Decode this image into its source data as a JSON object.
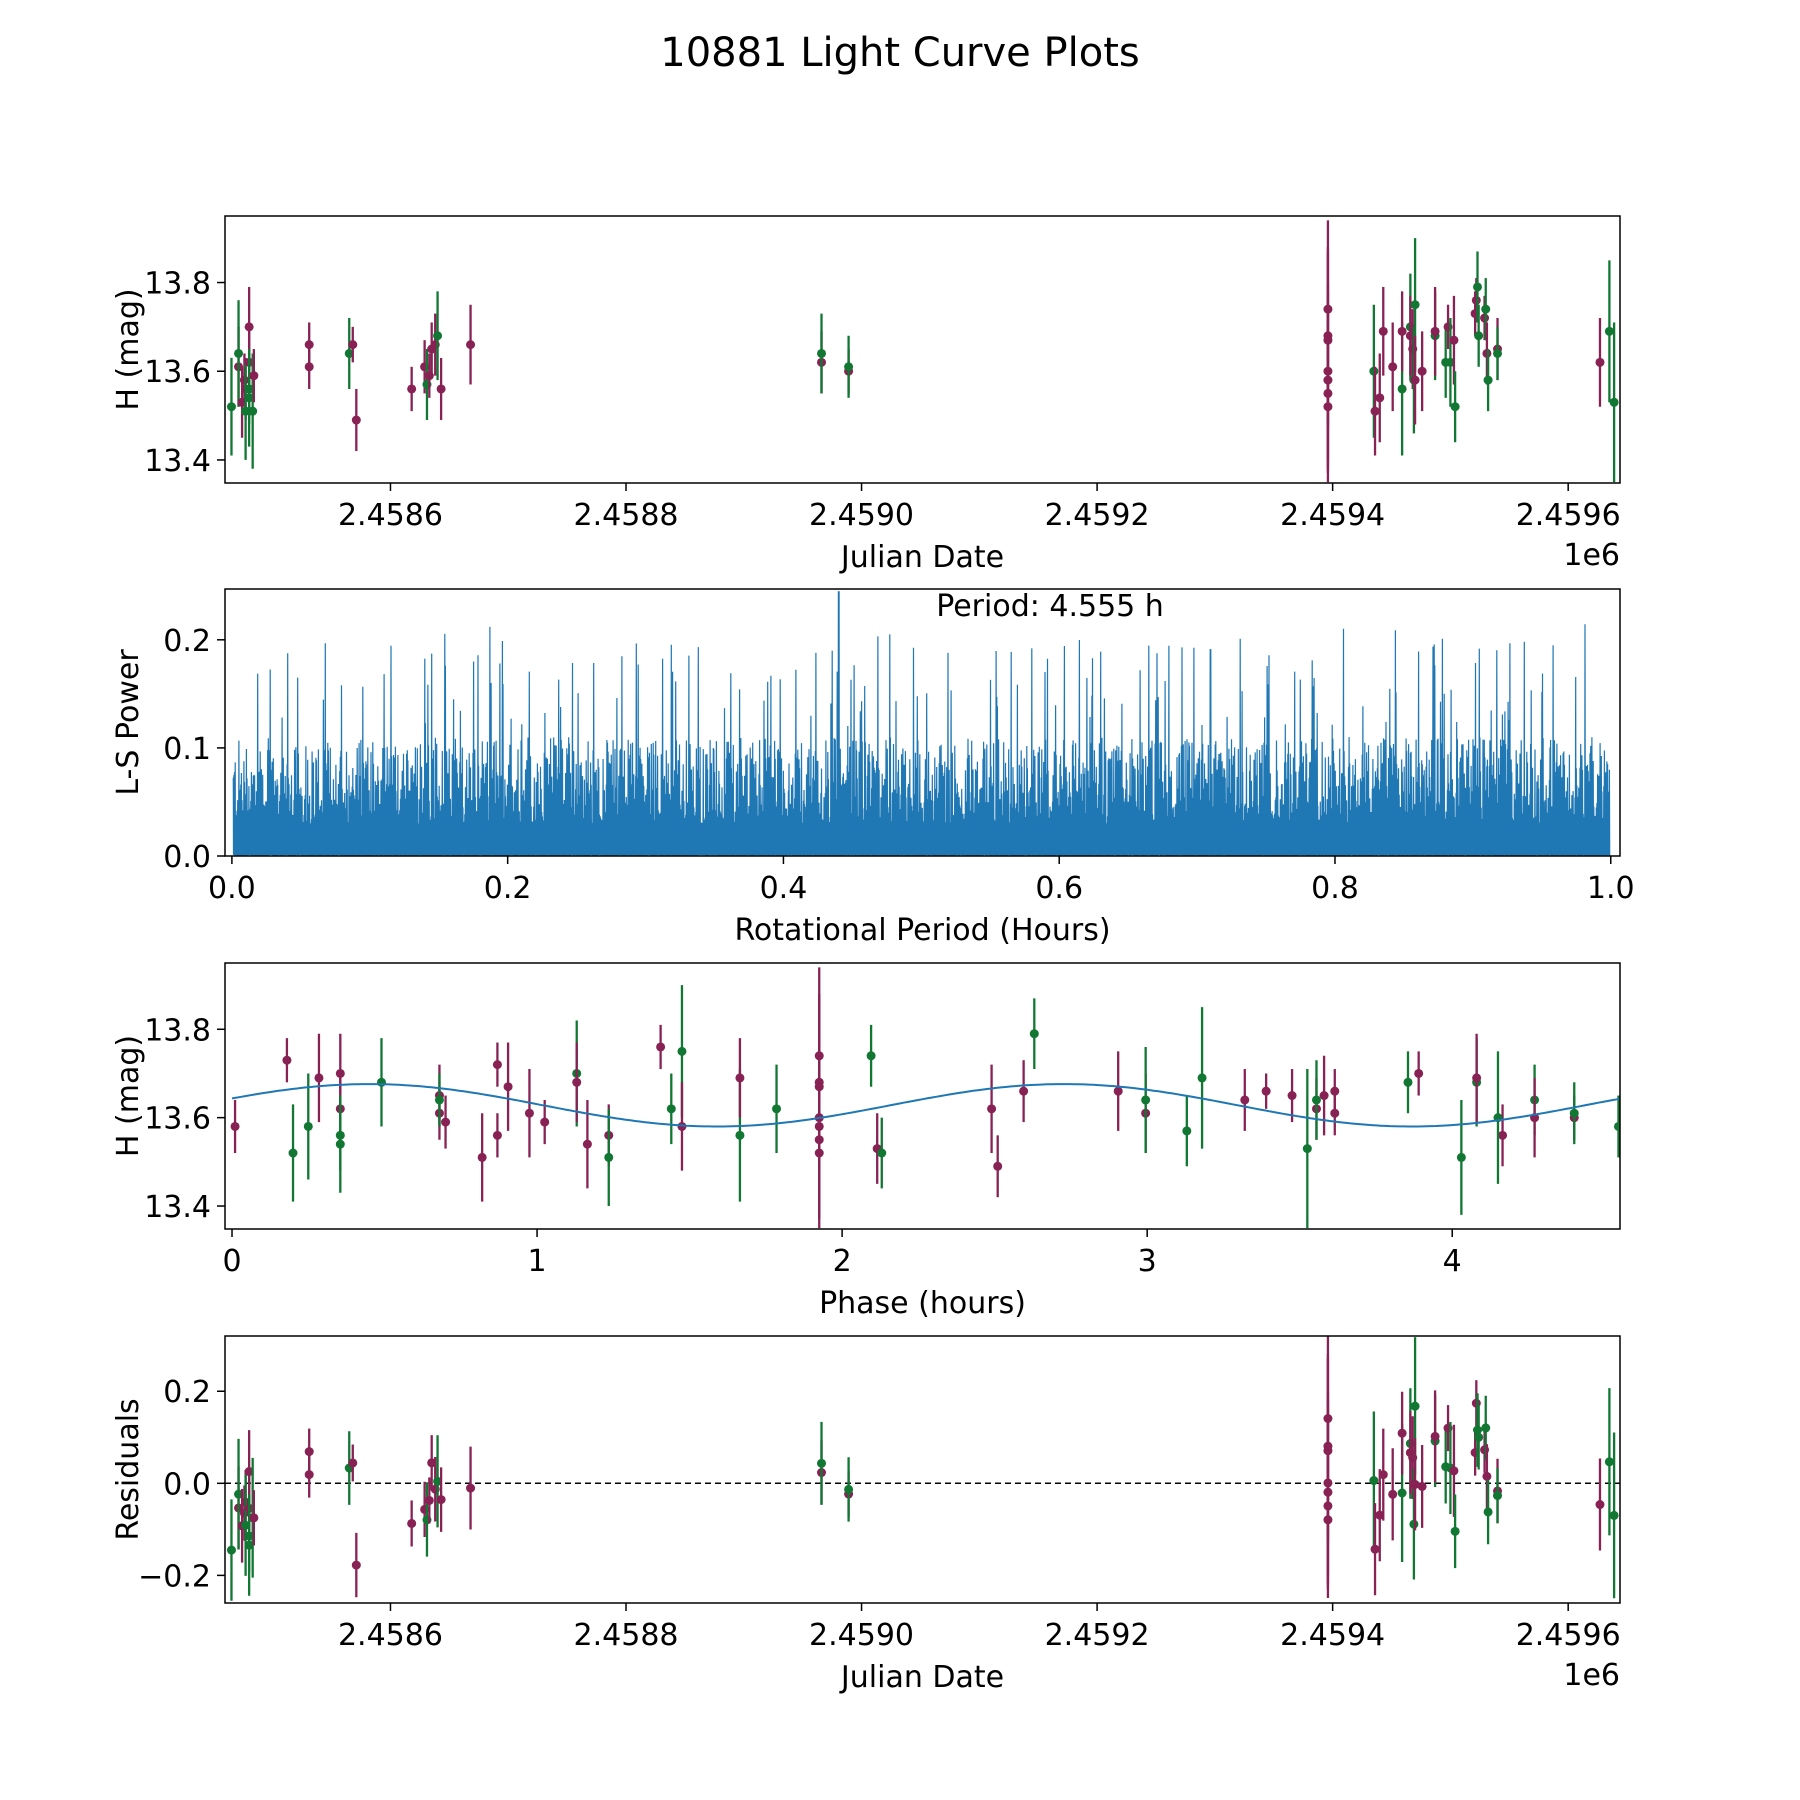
{
  "title": "10881 Light Curve Plots",
  "chart_data": [
    {
      "type": "scatter",
      "name": "light-curve",
      "xlabel": "Julian Date",
      "ylabel": "H (mag)",
      "xlim": [
        2458459.5,
        2459644
      ],
      "ylim": [
        13.348,
        13.95
      ],
      "xticks": [
        2458600,
        2458800,
        2459000,
        2459200,
        2459400,
        2459600
      ],
      "xtick_labels": [
        "2.4586",
        "2.4588",
        "2.4590",
        "2.4592",
        "2.4594",
        "2.4596"
      ],
      "x_offset_label": "1e6",
      "yticks": [
        13.4,
        13.6,
        13.8
      ],
      "ytick_labels": [
        "13.4",
        "13.6",
        "13.8"
      ],
      "colors": {
        "g": "#117733",
        "m": "#882255"
      },
      "points": [
        [
          2458465,
          13.52,
          0.11,
          "g"
        ],
        [
          2458471,
          13.61,
          0.09,
          "m"
        ],
        [
          2458471,
          13.64,
          0.12,
          "g"
        ],
        [
          2458474,
          13.53,
          0.08,
          "m"
        ],
        [
          2458476,
          13.58,
          0.06,
          "m"
        ],
        [
          2458477,
          13.56,
          0.07,
          "m"
        ],
        [
          2458477,
          13.51,
          0.11,
          "g"
        ],
        [
          2458480,
          13.7,
          0.09,
          "m"
        ],
        [
          2458480,
          13.62,
          0.08,
          "m"
        ],
        [
          2458480,
          13.56,
          0.08,
          "g"
        ],
        [
          2458480,
          13.54,
          0.11,
          "g"
        ],
        [
          2458483,
          13.51,
          0.13,
          "g"
        ],
        [
          2458484,
          13.59,
          0.06,
          "m"
        ],
        [
          2458531,
          13.66,
          0.05,
          "m"
        ],
        [
          2458531,
          13.61,
          0.05,
          "m"
        ],
        [
          2458565,
          13.64,
          0.08,
          "g"
        ],
        [
          2458568,
          13.66,
          0.04,
          "m"
        ],
        [
          2458571,
          13.49,
          0.07,
          "m"
        ],
        [
          2458618,
          13.56,
          0.05,
          "m"
        ],
        [
          2458629,
          13.61,
          0.06,
          "m"
        ],
        [
          2458631,
          13.57,
          0.08,
          "g"
        ],
        [
          2458633,
          13.59,
          0.05,
          "m"
        ],
        [
          2458635,
          13.65,
          0.06,
          "m"
        ],
        [
          2458638,
          13.66,
          0.07,
          "m"
        ],
        [
          2458640,
          13.68,
          0.1,
          "g"
        ],
        [
          2458643,
          13.56,
          0.07,
          "m"
        ],
        [
          2458668,
          13.66,
          0.09,
          "m"
        ],
        [
          2458966,
          13.62,
          0.07,
          "m"
        ],
        [
          2458966,
          13.64,
          0.09,
          "g"
        ],
        [
          2458989,
          13.6,
          0.05,
          "m"
        ],
        [
          2458989,
          13.61,
          0.07,
          "g"
        ],
        [
          2459396,
          13.74,
          0.2,
          "m"
        ],
        [
          2459396,
          13.68,
          0.2,
          "m"
        ],
        [
          2459396,
          13.67,
          0.2,
          "m"
        ],
        [
          2459396,
          13.6,
          0.2,
          "m"
        ],
        [
          2459396,
          13.58,
          0.2,
          "m"
        ],
        [
          2459396,
          13.55,
          0.2,
          "m"
        ],
        [
          2459396,
          13.52,
          0.15,
          "m"
        ],
        [
          2459435,
          13.6,
          0.15,
          "g"
        ],
        [
          2459436,
          13.51,
          0.1,
          "m"
        ],
        [
          2459440,
          13.54,
          0.1,
          "m"
        ],
        [
          2459443,
          13.69,
          0.1,
          "m"
        ],
        [
          2459451,
          13.61,
          0.1,
          "m"
        ],
        [
          2459459,
          13.56,
          0.15,
          "g"
        ],
        [
          2459459,
          13.69,
          0.09,
          "m"
        ],
        [
          2459466,
          13.7,
          0.12,
          "g"
        ],
        [
          2459466,
          13.68,
          0.09,
          "m"
        ],
        [
          2459468,
          13.65,
          0.09,
          "m"
        ],
        [
          2459469,
          13.58,
          0.12,
          "g"
        ],
        [
          2459470,
          13.75,
          0.15,
          "g"
        ],
        [
          2459470,
          13.58,
          0.1,
          "m"
        ],
        [
          2459476,
          13.6,
          0.09,
          "m"
        ],
        [
          2459487,
          13.68,
          0.1,
          "g"
        ],
        [
          2459487,
          13.69,
          0.1,
          "m"
        ],
        [
          2459496,
          13.62,
          0.08,
          "g"
        ],
        [
          2459498,
          13.7,
          0.05,
          "m"
        ],
        [
          2459500,
          13.62,
          0.1,
          "g"
        ],
        [
          2459503,
          13.67,
          0.1,
          "m"
        ],
        [
          2459504,
          13.52,
          0.08,
          "g"
        ],
        [
          2459521,
          13.73,
          0.05,
          "m"
        ],
        [
          2459522,
          13.76,
          0.05,
          "m"
        ],
        [
          2459523,
          13.79,
          0.08,
          "g"
        ],
        [
          2459524,
          13.68,
          0.07,
          "g"
        ],
        [
          2459529,
          13.72,
          0.05,
          "m"
        ],
        [
          2459530,
          13.74,
          0.07,
          "g"
        ],
        [
          2459531,
          13.64,
          0.07,
          "m"
        ],
        [
          2459532,
          13.58,
          0.07,
          "g"
        ],
        [
          2459540,
          13.65,
          0.07,
          "m"
        ],
        [
          2459540,
          13.64,
          0.06,
          "g"
        ],
        [
          2459627,
          13.62,
          0.1,
          "m"
        ],
        [
          2459635,
          13.69,
          0.16,
          "g"
        ],
        [
          2459639,
          13.53,
          0.18,
          "g"
        ]
      ]
    },
    {
      "type": "line",
      "name": "periodogram",
      "xlabel": "Rotational Period (Hours)",
      "ylabel": "L-S Power",
      "xlim": [
        -0.005,
        1.0067
      ],
      "ylim": [
        0,
        0.247
      ],
      "xticks": [
        0,
        0.2,
        0.4,
        0.6,
        0.8,
        1.0
      ],
      "xtick_labels": [
        "0.0",
        "0.2",
        "0.4",
        "0.6",
        "0.8",
        "1.0"
      ],
      "yticks": [
        0,
        0.1,
        0.2
      ],
      "ytick_labels": [
        "0.0",
        "0.1",
        "0.2"
      ],
      "color": "#1f77b4",
      "peak": {
        "x": 0.44,
        "power": 0.245
      },
      "annotation": "Period: 4.555 h"
    },
    {
      "type": "scatter",
      "name": "phased-curve",
      "xlabel": "Phase (hours)",
      "ylabel": "H (mag)",
      "xlim": [
        -0.023,
        4.55
      ],
      "ylim": [
        13.348,
        13.95
      ],
      "xticks": [
        0,
        1,
        2,
        3,
        4
      ],
      "xtick_labels": [
        "0",
        "1",
        "2",
        "3",
        "4"
      ],
      "yticks": [
        13.4,
        13.6,
        13.8
      ],
      "ytick_labels": [
        "13.4",
        "13.6",
        "13.8"
      ],
      "model": {
        "period_h": 4.555,
        "mean": 13.628,
        "amplitude": 0.048,
        "peak_phase_h": 0.45,
        "color": "#1f77b4"
      }
    },
    {
      "type": "scatter",
      "name": "residuals",
      "xlabel": "Julian Date",
      "ylabel": "Residuals",
      "xlim": [
        2458459.5,
        2459644
      ],
      "ylim": [
        -0.26,
        0.32
      ],
      "xticks": [
        2458600,
        2458800,
        2459000,
        2459200,
        2459400,
        2459600
      ],
      "xtick_labels": [
        "2.4586",
        "2.4588",
        "2.4590",
        "2.4592",
        "2.4594",
        "2.4596"
      ],
      "x_offset_label": "1e6",
      "yticks": [
        -0.2,
        0,
        0.2
      ],
      "ytick_labels": [
        "−0.2",
        "0.0",
        "0.2"
      ],
      "zero_line": 0
    }
  ]
}
